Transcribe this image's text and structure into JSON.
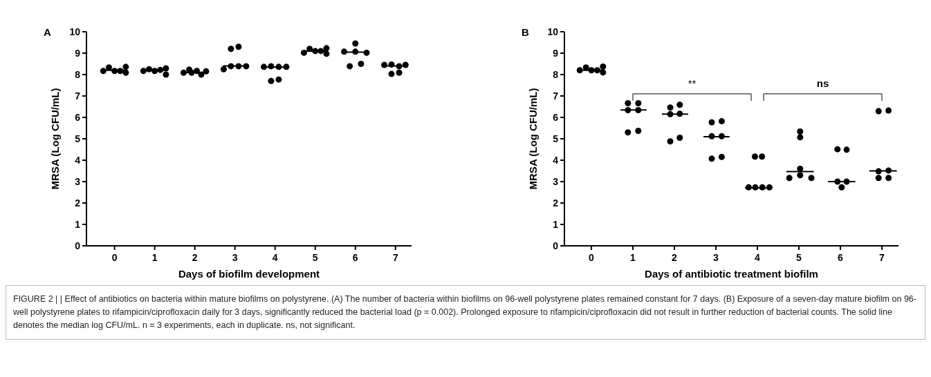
{
  "chart_data": [
    {
      "type": "scatter",
      "title": "A",
      "xlabel": "Days of biofilm development",
      "ylabel": "MRSA (Log CFU/mL)",
      "xlim": [
        -0.7,
        7.4
      ],
      "xticks": [
        0,
        1,
        2,
        3,
        4,
        5,
        6,
        7
      ],
      "ylim": [
        0,
        10
      ],
      "yticks": [
        0,
        1,
        2,
        3,
        4,
        5,
        6,
        7,
        8,
        9,
        10
      ],
      "marker": "circle",
      "series": [
        {
          "color": "#000000",
          "x": [
            -0.28,
            -0.14,
            0,
            0.14,
            0.28,
            0.28,
            0.72,
            0.86,
            1,
            1.14,
            1.28,
            1.28,
            1.72,
            1.86,
            2.05,
            2.16,
            2.28,
            1.92,
            2.72,
            2.9,
            3.09,
            2.9,
            3.09,
            3.28,
            3.72,
            3.9,
            4.09,
            4.28,
            3.9,
            4.09,
            4.72,
            4.86,
            5,
            5.14,
            5.28,
            5.28,
            5.72,
            6,
            6,
            6.28,
            5.86,
            6.14,
            6.72,
            6.9,
            7.09,
            6.9,
            7.09,
            7.25
          ],
          "values": [
            8.17,
            8.33,
            8.17,
            8.17,
            8.36,
            8.09,
            8.17,
            8.25,
            8.17,
            8.22,
            8.29,
            8.0,
            8.09,
            8.23,
            8.17,
            8.0,
            8.15,
            8.09,
            8.25,
            9.2,
            9.3,
            8.39,
            8.39,
            8.39,
            8.36,
            8.39,
            8.36,
            8.36,
            7.7,
            7.77,
            9.02,
            9.2,
            9.1,
            9.1,
            9.23,
            8.97,
            9.07,
            9.45,
            9.07,
            9.02,
            8.39,
            8.5,
            8.45,
            8.47,
            8.39,
            8.03,
            8.09,
            8.45
          ]
        },
        {
          "type": "line",
          "marker": "none",
          "color": "#000000",
          "x": [
            -0.3,
            0.3,
            0.5,
            0.7,
            1.3,
            1.5,
            1.7,
            2.3,
            2.5,
            2.7,
            3.3,
            3.5,
            3.7,
            4.3,
            4.5,
            4.7,
            5.3,
            5.5,
            5.7,
            6.3,
            6.5,
            6.7,
            7.3
          ],
          "values": [
            8.2,
            8.2,
            null,
            8.2,
            8.2,
            null,
            8.1,
            8.1,
            null,
            8.4,
            8.4,
            null,
            8.35,
            8.35,
            null,
            9.1,
            9.1,
            null,
            9.05,
            9.05,
            null,
            8.4,
            8.4
          ]
        }
      ]
    },
    {
      "type": "scatter",
      "title": "B",
      "xlabel": "Days of antibiotic treatment biofilm",
      "ylabel": "MRSA (Log CFU/mL)",
      "xlim": [
        -0.65,
        7.4
      ],
      "xticks": [
        0,
        1,
        2,
        3,
        4,
        5,
        6,
        7
      ],
      "ylim": [
        0,
        10
      ],
      "yticks": [
        0,
        1,
        2,
        3,
        4,
        5,
        6,
        7,
        8,
        9,
        10
      ],
      "marker": "circle",
      "series": [
        {
          "color": "#000000",
          "x": [
            -0.28,
            -0.13,
            0,
            0.14,
            0.28,
            0.28,
            0.88,
            1.13,
            0.88,
            1.13,
            0.88,
            1.13,
            1.9,
            2.13,
            1.9,
            2.13,
            1.9,
            2.13,
            2.9,
            3.14,
            2.9,
            3.14,
            2.9,
            3.14,
            3.94,
            4.11,
            3.79,
            3.95,
            4.12,
            4.29,
            5.03,
            5.03,
            5.03,
            4.77,
            5.03,
            5.3,
            5.93,
            6.15,
            5.93,
            6.15,
            6.03,
            6.92,
            7.16,
            6.92,
            7.16,
            6.92,
            7.16
          ],
          "values": [
            8.2,
            8.33,
            8.2,
            8.2,
            8.37,
            8.1,
            6.66,
            6.66,
            6.34,
            6.34,
            5.3,
            5.37,
            6.46,
            6.59,
            6.15,
            6.17,
            4.88,
            5.05,
            5.77,
            5.82,
            5.12,
            5.12,
            4.07,
            4.15,
            4.17,
            4.17,
            2.73,
            2.73,
            2.73,
            2.73,
            5.34,
            5.07,
            3.6,
            3.17,
            3.3,
            3.17,
            4.51,
            4.49,
            3.0,
            3.0,
            2.73,
            6.29,
            6.32,
            3.48,
            3.52,
            3.17,
            3.17
          ]
        },
        {
          "type": "line",
          "marker": "none",
          "color": "#000000",
          "x": [
            -0.3,
            0.3,
            0.5,
            0.7,
            1.33,
            1.5,
            1.7,
            2.33,
            2.5,
            2.7,
            3.33,
            3.5,
            3.7,
            4.33,
            4.5,
            4.7,
            5.36,
            5.5,
            5.7,
            6.36,
            6.5,
            6.7,
            7.36
          ],
          "values": [
            8.2,
            8.2,
            null,
            6.35,
            6.35,
            null,
            6.15,
            6.15,
            null,
            5.1,
            5.1,
            null,
            2.7,
            2.7,
            null,
            3.47,
            3.47,
            null,
            3.0,
            3.0,
            null,
            3.5,
            3.5
          ]
        }
      ],
      "annotations": [
        "**",
        "ns",
        "FIGURE 2 | | Effect of antibiotics on bacteria within mature biofilms on polystyrene. (A) The number of bacteria within biofilms on 96-well polystyrene plates remained constant for 7 days. (B) Exposure of a seven-day mature biofilm on 96-well polystyrene plates to rifampicin/ciprofloxacin daily for 3 days, significantly reduced the bacterial load (p = 0.002). Prolonged exposure to rifampicin/ciprofloxacin did not result in further reduction of bacterial counts. The solid line denotes the median log CFU/mL. n = 3 experiments, each in duplicate. ns, not significant."
      ]
    }
  ]
}
